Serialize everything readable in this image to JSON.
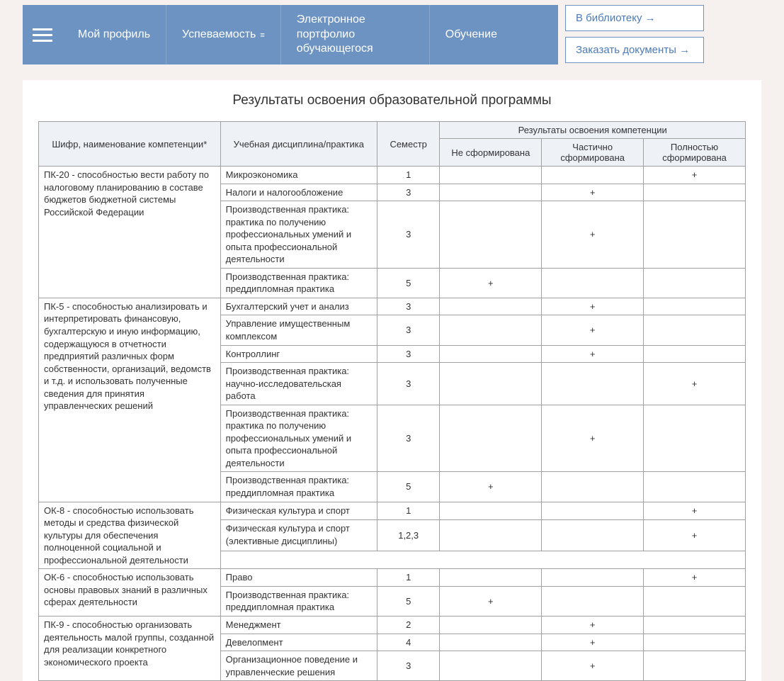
{
  "nav": {
    "items": [
      {
        "label": "Мой профиль",
        "hasCaret": false
      },
      {
        "label": "Успеваемость",
        "hasCaret": true
      },
      {
        "label": "Электронное портфолио обучающегося",
        "hasCaret": false
      },
      {
        "label": "Обучение",
        "hasCaret": false
      }
    ]
  },
  "sideLinks": [
    {
      "label": "В библиотеку →"
    },
    {
      "label": "Заказать документы →"
    }
  ],
  "page": {
    "title": "Результаты освоения образовательной программы"
  },
  "table": {
    "headers": {
      "competence": "Шифр, наименование компетенции*",
      "discipline": "Учебная дисциплина/практика",
      "semester": "Семестр",
      "resultsGroup": "Результаты освоения компетенции",
      "notFormed": "Не сформирована",
      "partial": "Частично сформирована",
      "full": "Полностью сформирована"
    },
    "groups": [
      {
        "competence": "ПК-20 - способностью вести работу по налоговому планированию в составе бюджетов бюджетной системы Российской Федерации",
        "rows": [
          {
            "discipline": "Микроэкономика",
            "semester": "1",
            "not": "",
            "partial": "",
            "full": "+"
          },
          {
            "discipline": "Налоги и налогообложение",
            "semester": "3",
            "not": "",
            "partial": "+",
            "full": ""
          },
          {
            "discipline": "Производственная практика: практика по получению профессиональных умений и опыта профессиональной деятельности",
            "semester": "3",
            "not": "",
            "partial": "+",
            "full": ""
          },
          {
            "discipline": "Производственная практика: преддипломная практика",
            "semester": "5",
            "not": "+",
            "partial": "",
            "full": ""
          }
        ]
      },
      {
        "competence": "ПК-5 - способностью анализировать и интерпретировать финансовую, бухгалтерскую и иную информацию, содержащуюся в отчетности предприятий различных форм собственности, организаций, ведомств и т.д. и использовать полученные сведения для принятия управленческих решений",
        "rows": [
          {
            "discipline": "Бухгалтерский учет и анализ",
            "semester": "3",
            "not": "",
            "partial": "+",
            "full": ""
          },
          {
            "discipline": "Управление имущественным комплексом",
            "semester": "3",
            "not": "",
            "partial": "+",
            "full": ""
          },
          {
            "discipline": "Контроллинг",
            "semester": "3",
            "not": "",
            "partial": "+",
            "full": ""
          },
          {
            "discipline": "Производственная практика: научно-исследовательская работа",
            "semester": "3",
            "not": "",
            "partial": "",
            "full": "+"
          },
          {
            "discipline": "Производственная практика: практика по получению профессиональных умений и опыта профессиональной деятельности",
            "semester": "3",
            "not": "",
            "partial": "+",
            "full": ""
          },
          {
            "discipline": "Производственная практика: преддипломная практика",
            "semester": "5",
            "not": "+",
            "partial": "",
            "full": ""
          }
        ]
      },
      {
        "competence": "ОК-8 - способностью использовать методы и средства физической культуры для обеспечения полноценной социальной и профессиональной деятельности",
        "rows": [
          {
            "discipline": "Физическая культура и спорт",
            "semester": "1",
            "not": "",
            "partial": "",
            "full": "+"
          },
          {
            "discipline": "Физическая культура и спорт (элективные дисциплины)",
            "semester": "1,2,3",
            "not": "",
            "partial": "",
            "full": "+"
          }
        ],
        "trailingEmpty": true
      },
      {
        "competence": "ОК-6 - способностью использовать основы правовых знаний в различных сферах деятельности",
        "rows": [
          {
            "discipline": "Право",
            "semester": "1",
            "not": "",
            "partial": "",
            "full": "+"
          },
          {
            "discipline": "Производственная практика: преддипломная практика",
            "semester": "5",
            "not": "+",
            "partial": "",
            "full": ""
          }
        ]
      },
      {
        "competence": "ПК-9 - способностью организовать деятельность малой группы, созданной для реализации конкретного экономического проекта",
        "rows": [
          {
            "discipline": "Менеджмент",
            "semester": "2",
            "not": "",
            "partial": "+",
            "full": ""
          },
          {
            "discipline": "Девелопмент",
            "semester": "4",
            "not": "",
            "partial": "+",
            "full": ""
          },
          {
            "discipline": "Организационное поведение и управленческие решения",
            "semester": "3",
            "not": "",
            "partial": "+",
            "full": ""
          }
        ]
      }
    ]
  },
  "colors": {
    "navBg": "#6d93c3",
    "navBorder": "#89a8cf",
    "linkBorder": "#6d93c3",
    "linkText": "#4d7bb7",
    "pageBg": "#f6f1ef",
    "headerBg": "#eef2f7",
    "tableBorder": "#a0a0a0"
  }
}
